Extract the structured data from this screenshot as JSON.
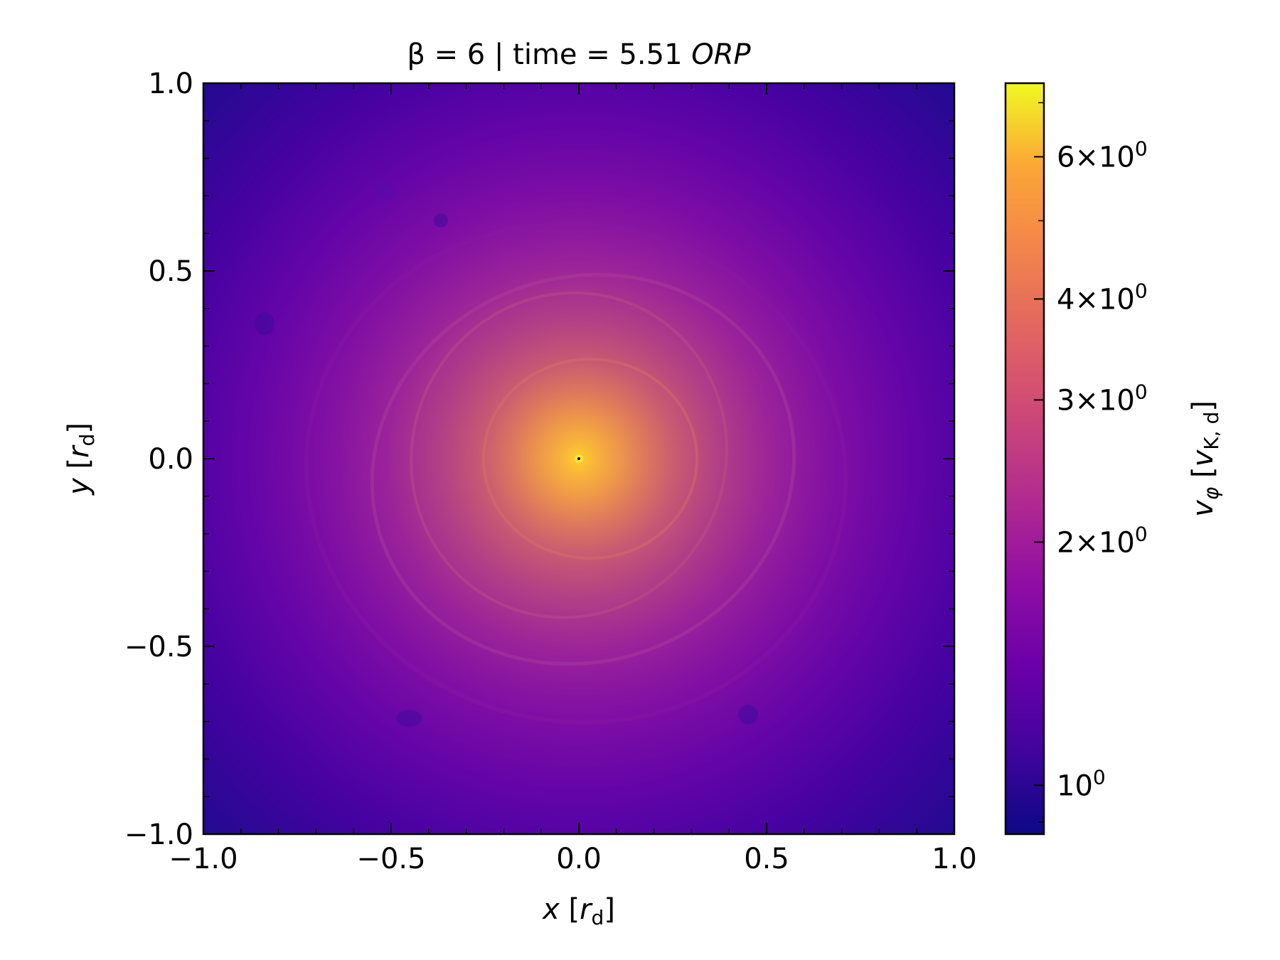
{
  "chart_data": {
    "type": "heatmap",
    "title": {
      "prefix": "β = 6 | time = 5.51 ",
      "italic": "ORP"
    },
    "xlabel": {
      "var": "x",
      "unit_open": "[",
      "unit": "r",
      "unit_sub": "d",
      "unit_close": "]"
    },
    "ylabel": {
      "var": "y",
      "unit_open": "[",
      "unit": "r",
      "unit_sub": "d",
      "unit_close": "]"
    },
    "xlim": [
      -1.0,
      1.0
    ],
    "ylim": [
      -1.0,
      1.0
    ],
    "x_ticks": [
      {
        "value": -1.0,
        "label": "−1.0"
      },
      {
        "value": -0.5,
        "label": "−0.5"
      },
      {
        "value": 0.0,
        "label": "0.0"
      },
      {
        "value": 0.5,
        "label": "0.5"
      },
      {
        "value": 1.0,
        "label": "1.0"
      }
    ],
    "y_ticks": [
      {
        "value": -1.0,
        "label": "−1.0"
      },
      {
        "value": -0.5,
        "label": "−0.5"
      },
      {
        "value": 0.0,
        "label": "0.0"
      },
      {
        "value": 0.5,
        "label": "0.5"
      },
      {
        "value": 1.0,
        "label": "1.0"
      }
    ],
    "colormap": "plasma",
    "colorbar": {
      "scale": "log",
      "range": [
        0.87,
        7.4
      ],
      "label": {
        "var": "v",
        "var_sub": "φ",
        "unit_open": "[",
        "unit": "v",
        "unit_sub": "K, d",
        "unit_close": "]"
      },
      "major_ticks": [
        {
          "value": 1,
          "mantissa": "",
          "base": "10",
          "exp": "0"
        },
        {
          "value": 2,
          "mantissa": "2",
          "base": "10",
          "exp": "0"
        },
        {
          "value": 3,
          "mantissa": "3",
          "base": "10",
          "exp": "0"
        },
        {
          "value": 4,
          "mantissa": "4",
          "base": "10",
          "exp": "0"
        },
        {
          "value": 6,
          "mantissa": "6",
          "base": "10",
          "exp": "0"
        }
      ],
      "minor_ticks": [
        0.9,
        5,
        7
      ],
      "times_symbol": "×"
    },
    "field": {
      "description_center_value": 7.0,
      "edge_value": 0.88,
      "center": [
        0.0,
        0.0
      ]
    },
    "tick_direction": "in",
    "grid": false
  }
}
